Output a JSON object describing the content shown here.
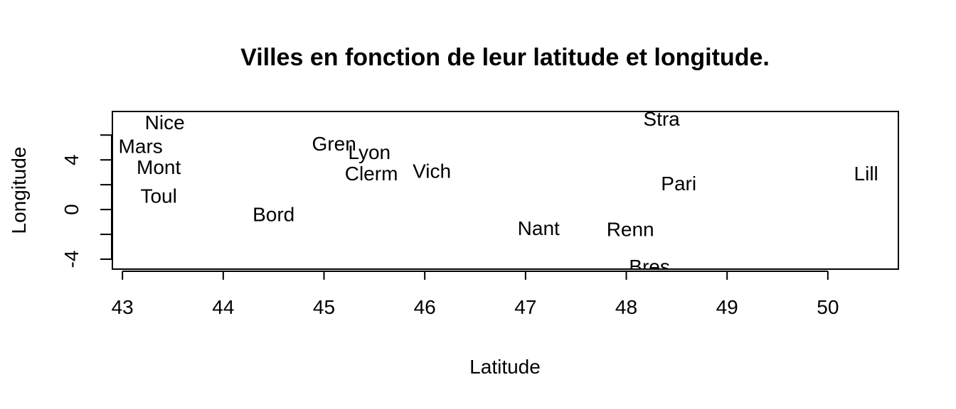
{
  "chart_data": {
    "type": "scatter",
    "title": "Villes en fonction de leur latitude et longitude.",
    "xlabel": "Latitude",
    "ylabel": "Longitude",
    "xlim": [
      42.9,
      50.7
    ],
    "ylim": [
      -4.8,
      7.9
    ],
    "x_ticks": [
      43,
      44,
      45,
      46,
      47,
      48,
      49,
      50
    ],
    "y_ticks": [
      -4,
      -2,
      0,
      2,
      4,
      6
    ],
    "y_tick_labels": [
      -4,
      0,
      4
    ],
    "points": [
      {
        "label": "Nice",
        "x": 43.42,
        "y": 7.0
      },
      {
        "label": "Mars",
        "x": 43.18,
        "y": 5.1
      },
      {
        "label": "Mont",
        "x": 43.36,
        "y": 3.4
      },
      {
        "label": "Toul",
        "x": 43.36,
        "y": 1.1
      },
      {
        "label": "Bord",
        "x": 44.5,
        "y": -0.4
      },
      {
        "label": "Gren",
        "x": 45.1,
        "y": 5.3
      },
      {
        "label": "Lyon",
        "x": 45.45,
        "y": 4.6
      },
      {
        "label": "Clerm",
        "x": 45.47,
        "y": 2.9
      },
      {
        "label": "Vich",
        "x": 46.07,
        "y": 3.1
      },
      {
        "label": "Nant",
        "x": 47.13,
        "y": -1.5
      },
      {
        "label": "Renn",
        "x": 48.04,
        "y": -1.6
      },
      {
        "label": "Bres",
        "x": 48.23,
        "y": -4.6
      },
      {
        "label": "Pari",
        "x": 48.52,
        "y": 2.1
      },
      {
        "label": "Stra",
        "x": 48.35,
        "y": 7.3
      },
      {
        "label": "Lill",
        "x": 50.38,
        "y": 2.9
      }
    ]
  }
}
